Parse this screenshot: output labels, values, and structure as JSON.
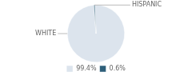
{
  "chart_data": {
    "type": "pie",
    "categories": [
      "WHITE",
      "HISPANIC"
    ],
    "values": [
      99.4,
      0.6
    ],
    "value_labels": [
      "99.4%",
      "0.6%"
    ],
    "colors": [
      "#dce4ed",
      "#2e5f7a"
    ],
    "legend": "bottom"
  }
}
